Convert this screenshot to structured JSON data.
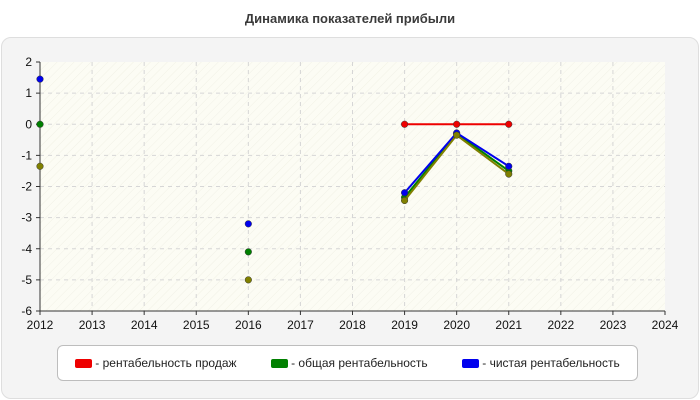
{
  "chart_data": {
    "type": "line",
    "title": "Динамика показателей прибыли",
    "xlabel": "",
    "ylabel": "",
    "x": [
      2012,
      2013,
      2014,
      2015,
      2016,
      2017,
      2018,
      2019,
      2020,
      2021,
      2022,
      2023,
      2024
    ],
    "x_tick_labels": [
      "2012",
      "2013",
      "2014",
      "2015",
      "2016",
      "2017",
      "2018",
      "2019",
      "2020",
      "2021",
      "2022",
      "2023",
      "2024"
    ],
    "y_tick_labels": [
      "2",
      "1",
      "0",
      "-1",
      "-2",
      "-3",
      "-4",
      "-5",
      "-6"
    ],
    "xlim": [
      2012,
      2024
    ],
    "ylim": [
      -6,
      2
    ],
    "grid": true,
    "legend_position": "bottom",
    "series": [
      {
        "name": "рентабельность продаж",
        "color": "#ee0000",
        "points": [
          [
            2019,
            0
          ],
          [
            2020,
            0
          ],
          [
            2021,
            0
          ]
        ]
      },
      {
        "name": "общая рентабельность",
        "color": "#008000",
        "points": [
          [
            2012,
            0
          ],
          [
            2016,
            -4.1
          ],
          [
            2019,
            -2.35
          ],
          [
            2020,
            -0.3
          ],
          [
            2021,
            -1.5
          ]
        ]
      },
      {
        "name": "чистая рентабельность",
        "color": "#0000ee",
        "points": [
          [
            2012,
            1.45
          ],
          [
            2016,
            -3.2
          ],
          [
            2019,
            -2.2
          ],
          [
            2020,
            -0.28
          ],
          [
            2021,
            -1.35
          ]
        ]
      },
      {
        "name": "",
        "color": "#808000",
        "points": [
          [
            2012,
            -1.35
          ],
          [
            2016,
            -5
          ],
          [
            2019,
            -2.45
          ],
          [
            2020,
            -0.35
          ],
          [
            2021,
            -1.6
          ]
        ]
      }
    ]
  },
  "legend": [
    {
      "label": "- рентабельность продаж",
      "color": "#ee0000"
    },
    {
      "label": "- общая рентабельность",
      "color": "#008000"
    },
    {
      "label": "- чистая рентабельность",
      "color": "#0000ee"
    }
  ]
}
